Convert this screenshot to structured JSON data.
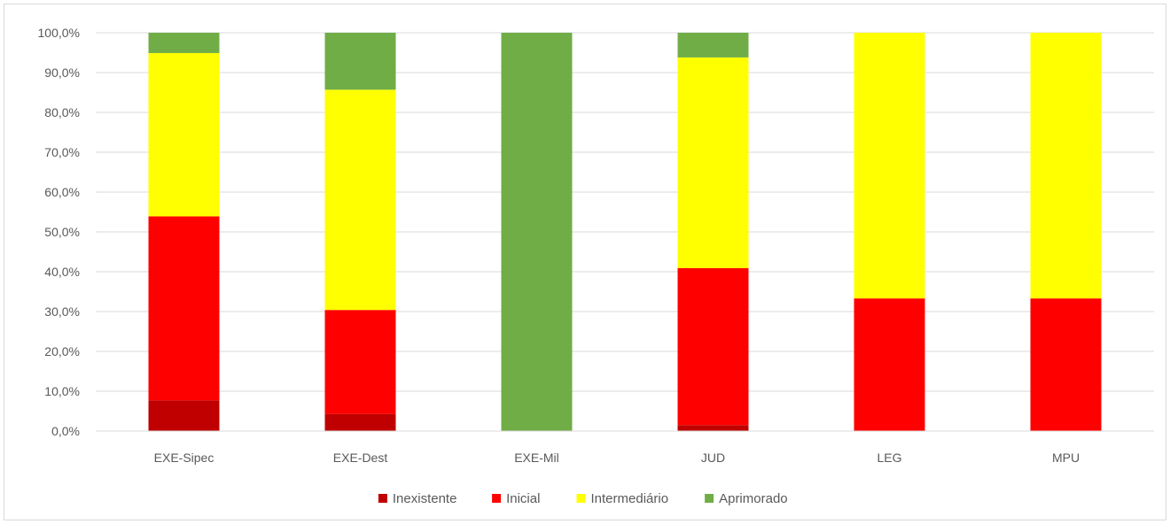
{
  "chart_data": {
    "type": "bar",
    "stacked": true,
    "categories": [
      "EXE-Sipec",
      "EXE-Dest",
      "EXE-Mil",
      "JUD",
      "LEG",
      "MPU"
    ],
    "series": [
      {
        "name": "Inexistente",
        "color": "#c00000",
        "values": [
          7.7,
          4.3,
          0.0,
          1.5,
          0.0,
          0.0
        ]
      },
      {
        "name": "Inicial",
        "color": "#ff0000",
        "values": [
          46.2,
          26.1,
          0.0,
          39.4,
          33.3,
          33.3
        ]
      },
      {
        "name": "Intermediário",
        "color": "#ffff00",
        "values": [
          41.0,
          55.3,
          0.0,
          52.9,
          66.7,
          66.7
        ]
      },
      {
        "name": "Aprimorado",
        "color": "#70ad47",
        "values": [
          5.1,
          14.3,
          100.0,
          6.2,
          0.0,
          0.0
        ]
      }
    ],
    "ylim": [
      0,
      100
    ],
    "yticks": [
      "0,0%",
      "10,0%",
      "20,0%",
      "30,0%",
      "40,0%",
      "50,0%",
      "60,0%",
      "70,0%",
      "80,0%",
      "90,0%",
      "100,0%"
    ],
    "grid": true,
    "legend_position": "bottom",
    "title": "",
    "xlabel": "",
    "ylabel": ""
  }
}
